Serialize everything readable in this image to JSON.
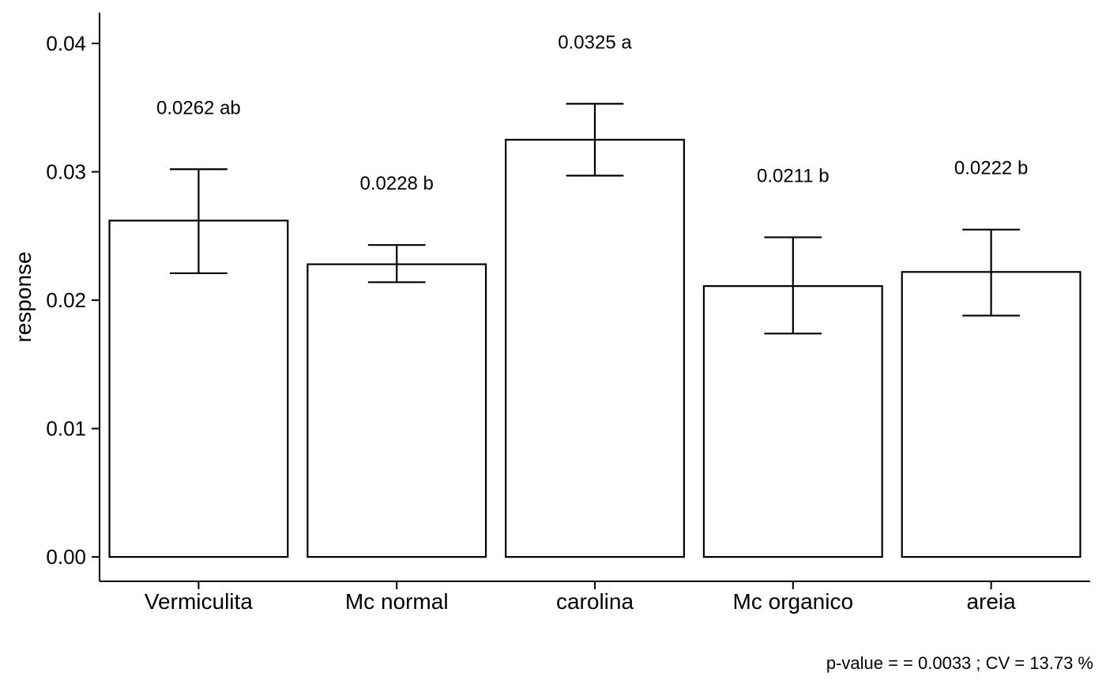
{
  "chart_data": {
    "type": "bar",
    "title": "",
    "xlabel": "",
    "ylabel": "response",
    "categories": [
      "Vermiculita",
      "Mc normal",
      "carolina",
      "Mc organico",
      "areia"
    ],
    "values": [
      0.0262,
      0.0228,
      0.0325,
      0.0211,
      0.0222
    ],
    "error_low": [
      0.0221,
      0.0214,
      0.0297,
      0.0174,
      0.0188
    ],
    "error_high": [
      0.0302,
      0.0243,
      0.0353,
      0.0249,
      0.0255
    ],
    "bar_labels": [
      "0.0262 ab",
      "0.0228 b",
      "0.0325 a",
      "0.0211 b",
      "0.0222 b"
    ],
    "y_ticks": [
      "0.00",
      "0.01",
      "0.02",
      "0.03",
      "0.04"
    ],
    "y_tick_values": [
      0,
      0.01,
      0.02,
      0.03,
      0.04
    ],
    "ylim": [
      -0.0019,
      0.0424
    ],
    "bar_fill": "#add8e6",
    "bar_stroke": "#000000",
    "caption": "p-value =  = 0.0033 ; CV =  13.73 %",
    "grid": false,
    "legend": "none"
  }
}
